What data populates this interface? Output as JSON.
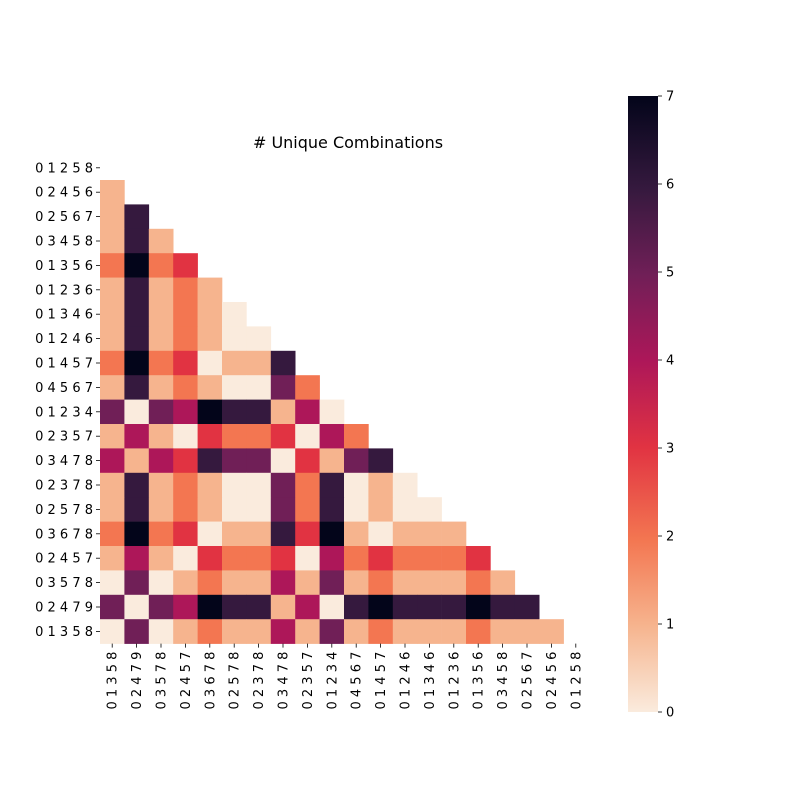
{
  "chart_data": {
    "type": "heatmap",
    "title": "# Unique Combinations",
    "row_labels": [
      "0 1 2 5 8",
      "0 2 4 5 6",
      "0 2 5 6 7",
      "0 3 4 5 8",
      "0 1 3 5 6",
      "0 1 2 3 6",
      "0 1 3 4 6",
      "0 1 2 4 6",
      "0 1 4 5 7",
      "0 4 5 6 7",
      "0 1 2 3 4",
      "0 2 3 5 7",
      "0 3 4 7 8",
      "0 2 3 7 8",
      "0 2 5 7 8",
      "0 3 6 7 8",
      "0 2 4 5 7",
      "0 3 5 7 8",
      "0 2 4 7 9",
      "0 1 3 5 8"
    ],
    "col_labels": [
      "0 1 3 5 8",
      "0 2 4 7 9",
      "0 3 5 7 8",
      "0 2 4 5 7",
      "0 3 6 7 8",
      "0 2 5 7 8",
      "0 2 3 7 8",
      "0 3 4 7 8",
      "0 2 3 5 7",
      "0 1 2 3 4",
      "0 4 5 6 7",
      "0 1 4 5 7",
      "0 1 2 4 6",
      "0 1 3 4 6",
      "0 1 2 3 6",
      "0 1 3 5 6",
      "0 3 4 5 8",
      "0 2 5 6 7",
      "0 2 4 5 6",
      "0 1 2 5 8"
    ],
    "values": [
      [],
      [
        1
      ],
      [
        1,
        6
      ],
      [
        1,
        6,
        1
      ],
      [
        2,
        7,
        2,
        3
      ],
      [
        1,
        6,
        1,
        2,
        1
      ],
      [
        1,
        6,
        1,
        2,
        1,
        0
      ],
      [
        1,
        6,
        1,
        2,
        1,
        0,
        0
      ],
      [
        2,
        7,
        2,
        3,
        0,
        1,
        1,
        6
      ],
      [
        1,
        6,
        1,
        2,
        1,
        0,
        0,
        5,
        2
      ],
      [
        5,
        0,
        5,
        4,
        7,
        6,
        6,
        1,
        4,
        0
      ],
      [
        1,
        4,
        1,
        0,
        3,
        2,
        2,
        3,
        0,
        4,
        2
      ],
      [
        4,
        1,
        4,
        3,
        6,
        5,
        5,
        0,
        3,
        1,
        5,
        6
      ],
      [
        1,
        6,
        1,
        2,
        1,
        0,
        0,
        5,
        2,
        6,
        0,
        1,
        0
      ],
      [
        1,
        6,
        1,
        2,
        1,
        0,
        0,
        5,
        2,
        6,
        0,
        1,
        0,
        0
      ],
      [
        2,
        7,
        2,
        3,
        0,
        1,
        1,
        6,
        3,
        7,
        1,
        0,
        1,
        1,
        1
      ],
      [
        1,
        4,
        1,
        0,
        3,
        2,
        2,
        3,
        0,
        4,
        2,
        3,
        2,
        2,
        2,
        3
      ],
      [
        0,
        5,
        0,
        1,
        2,
        1,
        1,
        4,
        1,
        5,
        1,
        2,
        1,
        1,
        1,
        2,
        1
      ],
      [
        5,
        0,
        5,
        4,
        7,
        6,
        6,
        1,
        4,
        0,
        6,
        7,
        6,
        6,
        6,
        7,
        6,
        6
      ],
      [
        0,
        5,
        0,
        1,
        2,
        1,
        1,
        4,
        1,
        5,
        1,
        2,
        1,
        1,
        1,
        2,
        1,
        1,
        1
      ]
    ],
    "mask": "upper triangle including diagonal",
    "colorbar": {
      "min": 0,
      "max": 7,
      "ticks": [
        0,
        1,
        2,
        3,
        4,
        5,
        6,
        7
      ],
      "colormap": "rocket_r"
    },
    "grid": false
  }
}
